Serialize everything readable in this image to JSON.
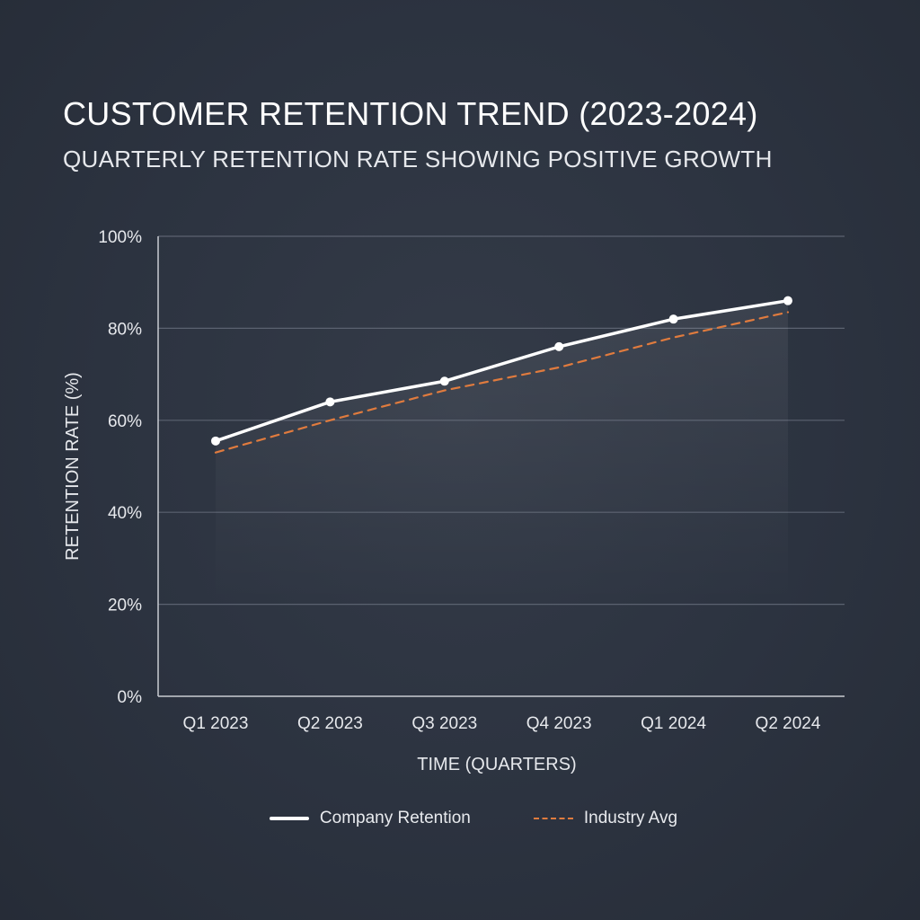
{
  "chart_data": {
    "type": "line",
    "title": "CUSTOMER RETENTION TREND (2023-2024)",
    "subtitle": "QUARTERLY RETENTION RATE SHOWING POSITIVE GROWTH",
    "xlabel": "TIME (QUARTERS)",
    "ylabel": "RETENTION RATE (%)",
    "categories": [
      "Q1 2023",
      "Q2 2023",
      "Q3 2023",
      "Q4 2023",
      "Q1 2024",
      "Q2 2024"
    ],
    "ylim": [
      0,
      100
    ],
    "yticks": [
      "0%",
      "20%",
      "40%",
      "60%",
      "80%",
      "100%"
    ],
    "grid": true,
    "legend_position": "bottom",
    "series": [
      {
        "name": "Company Retention",
        "values": [
          55.5,
          64,
          68.5,
          76,
          82,
          86
        ],
        "color": "#ffffff",
        "style": "solid"
      },
      {
        "name": "Industry Avg",
        "values": [
          53,
          60,
          66.5,
          71.5,
          78,
          83.5
        ],
        "color": "#e07b3e",
        "style": "dashed"
      }
    ]
  }
}
